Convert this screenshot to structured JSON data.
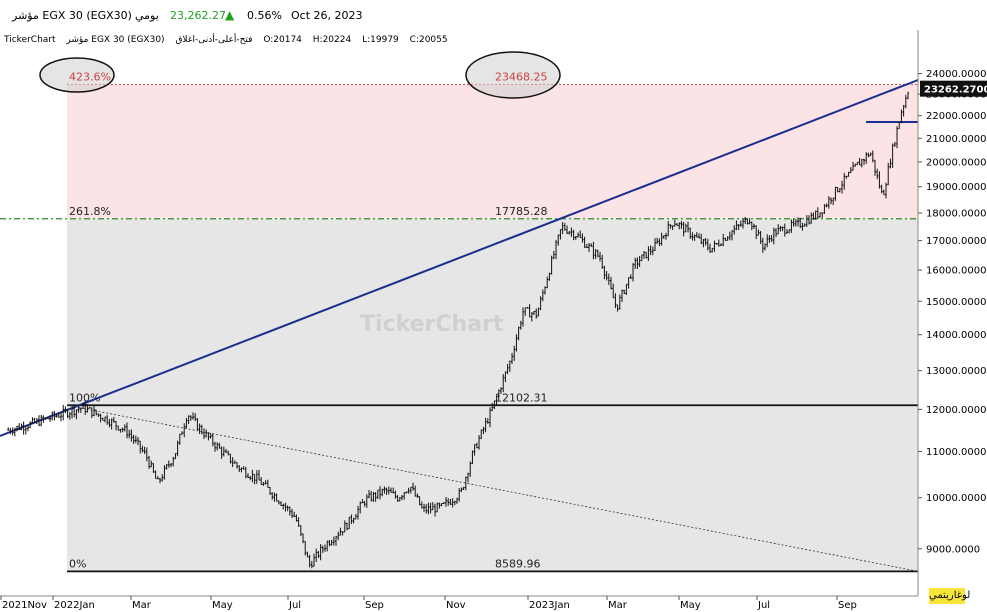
{
  "header": {
    "symbol": "مؤشر EGX 30  (EGX30)",
    "period": "يومي",
    "price": "23,262.27",
    "change": "0.56%",
    "date": "Oct 26, 2023",
    "up_color": "#22a022"
  },
  "ohlc_bar": {
    "source": "TickerChart",
    "name": "مؤشر EGX 30 (EGX30)",
    "ohlc_label": "فتح-أعلى-أدنى-اغلاق",
    "open": "O:20174",
    "high": "H:20224",
    "low": "L:19979",
    "close": "C:20055"
  },
  "watermark": "TickerChart",
  "log_button": "لوغاريتمي",
  "chart_data": {
    "type": "candlestick",
    "scale": "log",
    "ylim": [
      8300,
      25300
    ],
    "y_ticks": [
      "24000.0000",
      "23000.0000",
      "22000.0000",
      "21000.0000",
      "20000.0000",
      "19000.0000",
      "18000.0000",
      "17000.0000",
      "16000.0000",
      "15000.0000",
      "14000.0000",
      "13000.0000",
      "12000.0000",
      "11000.0000",
      "10000.0000",
      "9000.0000"
    ],
    "x_ticks": [
      "2021Nov",
      "2022Jan",
      "Mar",
      "May",
      "Jul",
      "Sep",
      "Nov",
      "2023Jan",
      "Mar",
      "May",
      "Jul",
      "Sep"
    ],
    "last_price_label": "23262.2700",
    "fib_levels": [
      {
        "pct": "423.6%",
        "value": "23468.25"
      },
      {
        "pct": "261.8%",
        "value": "17785.28"
      },
      {
        "pct": "100%",
        "value": "12102.31"
      },
      {
        "pct": "0%",
        "value": "8589.96"
      }
    ],
    "price_path": [
      [
        "2021-11-01",
        11500
      ],
      [
        "2021-11-20",
        11650
      ],
      [
        "2021-12-10",
        11850
      ],
      [
        "2021-12-31",
        12050
      ],
      [
        "2022-01-20",
        11750
      ],
      [
        "2022-02-05",
        11450
      ],
      [
        "2022-02-20",
        10900
      ],
      [
        "2022-03-01",
        10300
      ],
      [
        "2022-03-15",
        10950
      ],
      [
        "2022-03-25",
        11900
      ],
      [
        "2022-04-05",
        11500
      ],
      [
        "2022-04-20",
        11050
      ],
      [
        "2022-05-05",
        10650
      ],
      [
        "2022-05-20",
        10400
      ],
      [
        "2022-06-05",
        10000
      ],
      [
        "2022-06-20",
        9600
      ],
      [
        "2022-07-01",
        8700
      ],
      [
        "2022-07-15",
        9100
      ],
      [
        "2022-07-31",
        9450
      ],
      [
        "2022-08-15",
        9950
      ],
      [
        "2022-08-31",
        10150
      ],
      [
        "2022-09-10",
        10000
      ],
      [
        "2022-09-20",
        10250
      ],
      [
        "2022-09-30",
        9750
      ],
      [
        "2022-10-15",
        9800
      ],
      [
        "2022-10-31",
        10100
      ],
      [
        "2022-11-10",
        11000
      ],
      [
        "2022-11-25",
        12000
      ],
      [
        "2022-12-10",
        13300
      ],
      [
        "2022-12-20",
        14700
      ],
      [
        "2022-12-31",
        14600
      ],
      [
        "2023-01-10",
        16000
      ],
      [
        "2023-01-20",
        17500
      ],
      [
        "2023-02-01",
        17200
      ],
      [
        "2023-02-10",
        16800
      ],
      [
        "2023-02-20",
        16400
      ],
      [
        "2023-03-05",
        14800
      ],
      [
        "2023-03-20",
        16200
      ],
      [
        "2023-04-05",
        16800
      ],
      [
        "2023-04-20",
        17700
      ],
      [
        "2023-05-05",
        17200
      ],
      [
        "2023-05-20",
        16700
      ],
      [
        "2023-06-05",
        17300
      ],
      [
        "2023-06-20",
        17800
      ],
      [
        "2023-07-01",
        16800
      ],
      [
        "2023-07-10",
        17300
      ],
      [
        "2023-07-31",
        17600
      ],
      [
        "2023-08-15",
        18000
      ],
      [
        "2023-08-31",
        19000
      ],
      [
        "2023-09-15",
        19900
      ],
      [
        "2023-09-25",
        20400
      ],
      [
        "2023-10-01",
        19300
      ],
      [
        "2023-10-05",
        18600
      ],
      [
        "2023-10-12",
        20300
      ],
      [
        "2023-10-20",
        22200
      ],
      [
        "2023-10-26",
        23262
      ]
    ]
  }
}
